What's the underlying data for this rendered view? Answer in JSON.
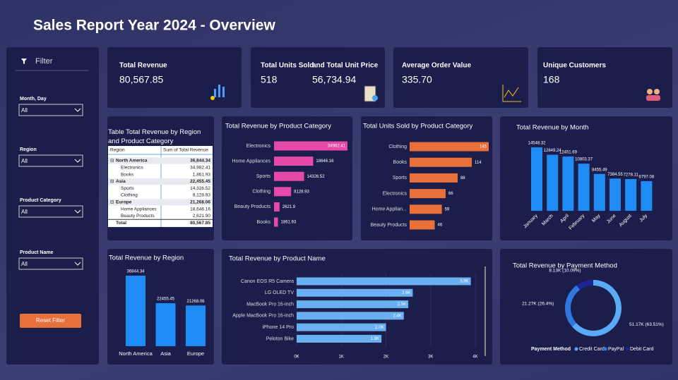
{
  "header": {
    "title": "Sales Report Year 2024 - Overview"
  },
  "filter_panel": {
    "title": "Filter",
    "filters": [
      {
        "label": "Month, Day",
        "value": "All"
      },
      {
        "label": "Region",
        "value": "All"
      },
      {
        "label": "Product Category",
        "value": "All"
      },
      {
        "label": "Product Name",
        "value": "All"
      }
    ],
    "button": "Reset Filter"
  },
  "kpis": [
    {
      "titles": [
        "Total Revenue"
      ],
      "values": [
        "80,567.85"
      ]
    },
    {
      "titles": [
        "Total Units Sold",
        "and Total Unit Price"
      ],
      "values": [
        "518",
        "56,734.94"
      ]
    },
    {
      "titles": [
        "Average Order Value"
      ],
      "values": [
        "335.70"
      ]
    },
    {
      "titles": [
        "Unique Customers"
      ],
      "values": [
        "168"
      ]
    }
  ],
  "table": {
    "title": "Table Total Revenue by Region and Product Category",
    "columns": [
      "Region",
      "Sum of Total Revenue"
    ],
    "groups": [
      {
        "name": "North America",
        "value": "36,844.34",
        "children": [
          [
            "Electronics",
            "34,982.41"
          ],
          [
            "Books",
            "1,861.93"
          ]
        ]
      },
      {
        "name": "Asia",
        "value": "22,455.45",
        "children": [
          [
            "Sports",
            "14,326.52"
          ],
          [
            "Clothing",
            "8,128.93"
          ]
        ]
      },
      {
        "name": "Europe",
        "value": "21,268.06",
        "children": [
          [
            "Home Appliances",
            "18,646.16"
          ],
          [
            "Beauty Products",
            "2,621.90"
          ]
        ]
      }
    ],
    "total": [
      "Total",
      "80,567.85"
    ]
  },
  "chart_data": [
    {
      "type": "bar",
      "orientation": "horizontal",
      "title": "Total Revenue by Product Category",
      "color": "#e64aa8",
      "categories": [
        "Electronics",
        "Home Appliances",
        "Sports",
        "Clothing",
        "Beauty Products",
        "Books"
      ],
      "values": [
        34982.41,
        18646.16,
        14326.52,
        8128.93,
        2621.9,
        1861.93
      ]
    },
    {
      "type": "bar",
      "orientation": "horizontal",
      "title": "Total Units Sold by Product Category",
      "color": "#e8703a",
      "categories": [
        "Clothing",
        "Books",
        "Sports",
        "Electronics",
        "Home Applian...",
        "Beauty Products"
      ],
      "values": [
        145,
        114,
        88,
        66,
        59,
        46
      ]
    },
    {
      "type": "bar",
      "orientation": "vertical",
      "title": "Total Revenue by Month",
      "color": "#1f8bf5",
      "categories": [
        "January",
        "March",
        "April",
        "February",
        "May",
        "June",
        "August",
        "July"
      ],
      "values": [
        14548.32,
        12849.24,
        12451.69,
        10803.37,
        8455.49,
        7384.55,
        7278.11,
        6797.08
      ]
    },
    {
      "type": "bar",
      "orientation": "vertical",
      "title": "Total Revenue by Region",
      "color": "#1f8bf5",
      "categories": [
        "North America",
        "Asia",
        "Europe"
      ],
      "values": [
        36844.34,
        22455.45,
        21268.06
      ]
    },
    {
      "type": "bar",
      "orientation": "horizontal",
      "title": "Total Revenue by Product Name",
      "color": "#6aaff0",
      "categories": [
        "Canon EOS R5 Camera",
        "LG OLED TV",
        "MacBook Pro 16-inch",
        "Apple MacBook Pro 16-inch",
        "iPhone 14 Pro",
        "Peloton Bike"
      ],
      "values": [
        3900,
        2600,
        2500,
        2400,
        2000,
        1900
      ],
      "value_labels": [
        "3.9K",
        "2.6K",
        "2.5K",
        "2.4K",
        "2.0K",
        "1.9K"
      ],
      "xlim": [
        0,
        4000
      ],
      "xticks": [
        {
          "value": 0,
          "label": "0K"
        },
        {
          "value": 1000,
          "label": "1K"
        },
        {
          "value": 2000,
          "label": "2K"
        },
        {
          "value": 3000,
          "label": "3K"
        },
        {
          "value": 4000,
          "label": "4K"
        }
      ]
    },
    {
      "type": "pie",
      "donut": true,
      "title": "Total Revenue by Payment Method",
      "legend_title": "Payment Method",
      "categories": [
        "Credit Card",
        "PayPal",
        "Debit Card"
      ],
      "colors": [
        "#5aaaf5",
        "#2f78e0",
        "#1a2590"
      ],
      "values": [
        51170,
        21270,
        8130
      ],
      "value_labels": [
        "51.17K (63.51%)",
        "21.27K (26.4%)",
        "8.13K (10.09%)"
      ]
    }
  ]
}
